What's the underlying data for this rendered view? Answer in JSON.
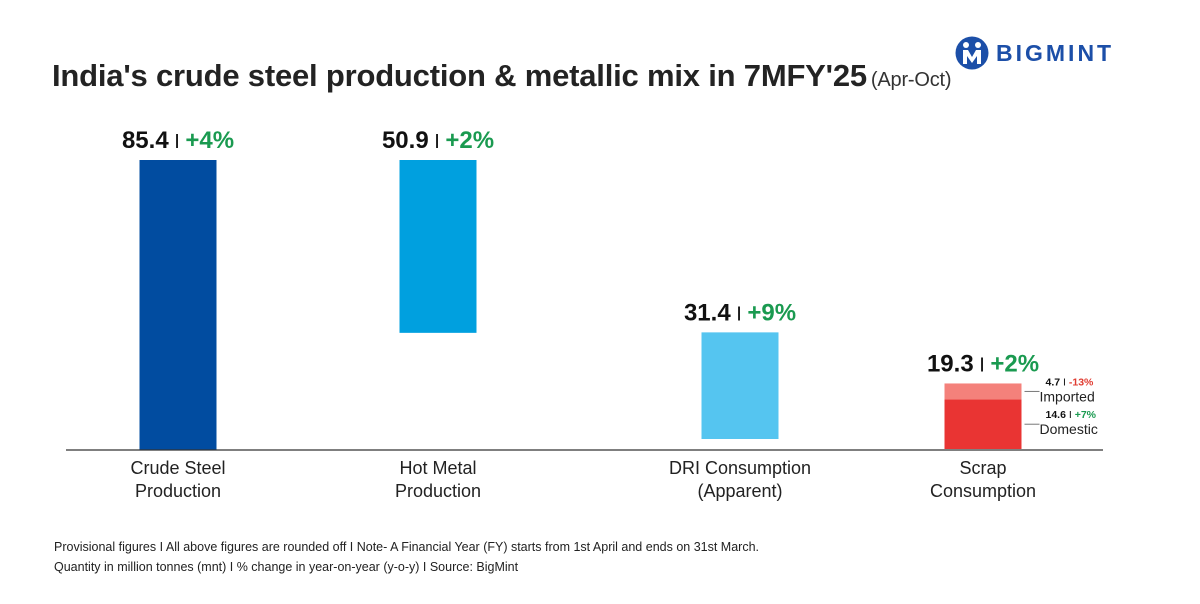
{
  "header": {
    "title": "India's crude steel production & metallic mix in 7MFY'25",
    "subtitle": "(Apr-Oct)",
    "logo_text": "BIGMINT",
    "logo_icon": "bigmint-logo-icon"
  },
  "chart_data": {
    "type": "bar",
    "title": "India's crude steel production & metallic mix in 7MFY'25",
    "subtitle": "(Apr-Oct)",
    "unit": "million tonnes (mnt)",
    "layout": "waterfall",
    "categories": [
      [
        "Crude Steel",
        "Production"
      ],
      [
        "Hot Metal",
        "Production"
      ],
      [
        "DRI Consumption",
        "(Apparent)"
      ],
      [
        "Scrap",
        "Consumption"
      ]
    ],
    "bars": [
      {
        "label": "Crude Steel Production",
        "value": 85.4,
        "change": "+4%",
        "color": "#014ca0"
      },
      {
        "label": "Hot Metal Production",
        "value": 50.9,
        "change": "+2%",
        "color": "#00a0df"
      },
      {
        "label": "DRI Consumption (Apparent)",
        "value": 31.4,
        "change": "+9%",
        "color": "#55c5f0"
      },
      {
        "label": "Scrap Consumption",
        "value": 19.3,
        "change": "+2%",
        "segments": [
          {
            "name": "Domestic",
            "value": 14.6,
            "change": "+7%",
            "color": "#e93433",
            "change_color": "#1a9a50"
          },
          {
            "name": "Imported",
            "value": 4.7,
            "change": "-13%",
            "color": "#f4817b",
            "change_color": "#e03c31"
          }
        ]
      }
    ],
    "value_color": "#111111",
    "change_color": "#1a9a50",
    "xlabel": "",
    "ylabel": "",
    "ylim": [
      0,
      85.4
    ],
    "grid": false,
    "legend": "none"
  },
  "footer": {
    "line1": "Provisional figures  I  All above figures are rounded off  I  Note- A Financial Year (FY) starts from 1st April and ends on 31st March.",
    "line2": "Quantity in million tonnes (mnt)  I  % change in year-on-year (y-o-y)  I  Source: BigMint"
  }
}
